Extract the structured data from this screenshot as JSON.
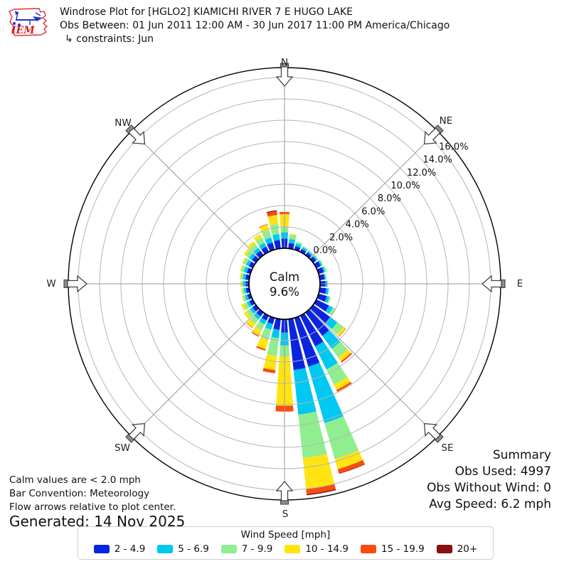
{
  "header": {
    "title": "Windrose Plot for [HGLO2] KIAMICHI RIVER 7 E HUGO LAKE",
    "obs_range": "Obs Between: 01 Jun 2011 12:00 AM - 30 Jun 2017 11:00 PM America/Chicago",
    "constraints": "↳ constraints: Jun",
    "logo_text": "IEM"
  },
  "summary": {
    "title": "Summary",
    "obs_used": "Obs Used: 4997",
    "obs_without_wind": "Obs Without Wind: 0",
    "avg_speed": "Avg Speed: 6.2 mph"
  },
  "notes": {
    "calm_note": "Calm values are < 2.0 mph",
    "convention_note": "Bar Convention: Meteorology",
    "arrows_note": "Flow arrows relative to plot center.",
    "generated": "Generated: 14 Nov 2025"
  },
  "legend": {
    "title": "Wind Speed [mph]"
  },
  "chart_data": {
    "type": "windrose",
    "units": "mph",
    "direction_bin_deg": 10,
    "calm": {
      "label": "Calm",
      "percent": "9.6%"
    },
    "ring_percents": [
      0,
      2,
      4,
      6,
      8,
      10,
      12,
      14,
      16
    ],
    "ring_labels": [
      "0.0%",
      "2.0%",
      "4.0%",
      "6.0%",
      "8.0%",
      "10.0%",
      "12.0%",
      "14.0%",
      "16.0%"
    ],
    "compass": [
      {
        "label": "N",
        "deg": 0
      },
      {
        "label": "NE",
        "deg": 45
      },
      {
        "label": "E",
        "deg": 90
      },
      {
        "label": "SE",
        "deg": 135
      },
      {
        "label": "S",
        "deg": 180
      },
      {
        "label": "SW",
        "deg": 225
      },
      {
        "label": "W",
        "deg": 270
      },
      {
        "label": "NW",
        "deg": 315
      }
    ],
    "speed_bins": [
      {
        "label": "2 - 4.9",
        "color": "#0b24e0"
      },
      {
        "label": "5 - 6.9",
        "color": "#00c8f0"
      },
      {
        "label": "7 - 9.9",
        "color": "#90ee90"
      },
      {
        "label": "10 - 14.9",
        "color": "#ffe412"
      },
      {
        "label": "15 - 19.9",
        "color": "#fb4b10"
      },
      {
        "label": "20+",
        "color": "#8b0f0f"
      }
    ],
    "directions": [
      {
        "deg": 0,
        "values": [
          0.9,
          0.6,
          0.5,
          1.2,
          0.2,
          0.0
        ]
      },
      {
        "deg": 10,
        "values": [
          0.5,
          0.4,
          0.4,
          0.1,
          0.0,
          0.0
        ]
      },
      {
        "deg": 20,
        "values": [
          0.35,
          0.25,
          0.2,
          0.0,
          0.0,
          0.0
        ]
      },
      {
        "deg": 30,
        "values": [
          0.3,
          0.2,
          0.1,
          0.0,
          0.0,
          0.0
        ]
      },
      {
        "deg": 40,
        "values": [
          0.3,
          0.15,
          0.1,
          0.0,
          0.0,
          0.0
        ]
      },
      {
        "deg": 50,
        "values": [
          0.35,
          0.15,
          0.1,
          0.0,
          0.0,
          0.0
        ]
      },
      {
        "deg": 60,
        "values": [
          0.45,
          0.15,
          0.1,
          0.0,
          0.0,
          0.0
        ]
      },
      {
        "deg": 70,
        "values": [
          0.5,
          0.15,
          0.15,
          0.0,
          0.0,
          0.0
        ]
      },
      {
        "deg": 80,
        "values": [
          0.45,
          0.1,
          0.1,
          0.0,
          0.0,
          0.0
        ]
      },
      {
        "deg": 90,
        "values": [
          0.5,
          0.2,
          0.0,
          0.0,
          0.0,
          0.0
        ]
      },
      {
        "deg": 100,
        "values": [
          0.6,
          0.25,
          0.0,
          0.0,
          0.0,
          0.0
        ]
      },
      {
        "deg": 110,
        "values": [
          0.8,
          0.25,
          0.15,
          0.0,
          0.0,
          0.0
        ]
      },
      {
        "deg": 120,
        "values": [
          1.3,
          0.4,
          0.3,
          0.0,
          0.0,
          0.0
        ]
      },
      {
        "deg": 130,
        "values": [
          2.0,
          0.8,
          0.7,
          0.25,
          0.05,
          0.0
        ]
      },
      {
        "deg": 140,
        "values": [
          2.7,
          1.5,
          1.0,
          0.45,
          0.15,
          0.0
        ]
      },
      {
        "deg": 150,
        "values": [
          3.2,
          2.4,
          1.6,
          0.55,
          0.2,
          0.0
        ]
      },
      {
        "deg": 160,
        "values": [
          4.75,
          5.5,
          3.5,
          1.0,
          0.4,
          0.05
        ]
      },
      {
        "deg": 170,
        "values": [
          4.8,
          4.2,
          4.1,
          2.9,
          0.5,
          0.1
        ]
      },
      {
        "deg": 180,
        "values": [
          1.25,
          1.2,
          1.05,
          4.6,
          0.55,
          0.0
        ]
      },
      {
        "deg": 190,
        "values": [
          1.0,
          0.8,
          1.65,
          1.35,
          0.3,
          0.0
        ]
      },
      {
        "deg": 200,
        "values": [
          0.6,
          0.55,
          1.0,
          0.9,
          0.15,
          0.0
        ]
      },
      {
        "deg": 210,
        "values": [
          0.5,
          0.4,
          0.6,
          0.6,
          0.1,
          0.0
        ]
      },
      {
        "deg": 220,
        "values": [
          0.45,
          0.35,
          0.5,
          0.45,
          0.05,
          0.0
        ]
      },
      {
        "deg": 230,
        "values": [
          0.4,
          0.3,
          0.4,
          0.3,
          0.0,
          0.0
        ]
      },
      {
        "deg": 240,
        "values": [
          0.35,
          0.25,
          0.35,
          0.25,
          0.0,
          0.0
        ]
      },
      {
        "deg": 250,
        "values": [
          0.3,
          0.25,
          0.2,
          0.1,
          0.0,
          0.0
        ]
      },
      {
        "deg": 260,
        "values": [
          0.3,
          0.2,
          0.15,
          0.1,
          0.0,
          0.0
        ]
      },
      {
        "deg": 270,
        "values": [
          0.3,
          0.25,
          0.15,
          0.1,
          0.0,
          0.0
        ]
      },
      {
        "deg": 280,
        "values": [
          0.35,
          0.25,
          0.2,
          0.1,
          0.0,
          0.0
        ]
      },
      {
        "deg": 290,
        "values": [
          0.35,
          0.3,
          0.25,
          0.1,
          0.0,
          0.0
        ]
      },
      {
        "deg": 300,
        "values": [
          0.4,
          0.3,
          0.3,
          0.1,
          0.0,
          0.0
        ]
      },
      {
        "deg": 310,
        "values": [
          0.45,
          0.35,
          0.4,
          0.2,
          0.0,
          0.0
        ]
      },
      {
        "deg": 320,
        "values": [
          0.5,
          0.35,
          0.45,
          0.3,
          0.0,
          0.0
        ]
      },
      {
        "deg": 330,
        "values": [
          0.55,
          0.4,
          0.55,
          0.35,
          0.0,
          0.0
        ]
      },
      {
        "deg": 340,
        "values": [
          0.7,
          0.5,
          0.7,
          0.55,
          0.05,
          0.0
        ]
      },
      {
        "deg": 350,
        "values": [
          0.8,
          0.55,
          0.95,
          0.85,
          0.35,
          0.1
        ]
      }
    ]
  }
}
